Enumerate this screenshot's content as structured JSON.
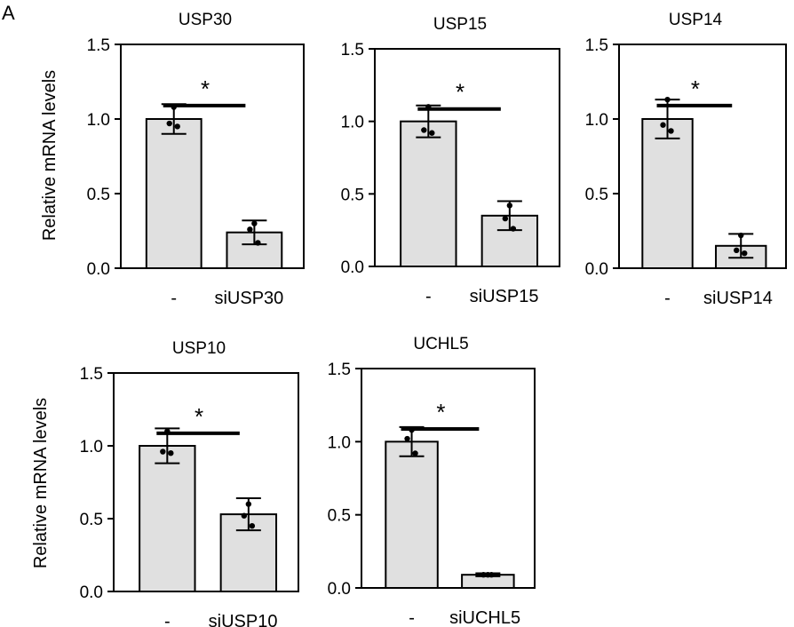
{
  "panel_label": "A",
  "y_axis_label": "Relative mRNA levels",
  "colors": {
    "bar_fill": "#e0e0e0",
    "stroke": "#000000"
  },
  "chart_data": [
    {
      "type": "bar",
      "title": "USP30",
      "categories": [
        "-",
        "siUSP30"
      ],
      "values": [
        1.0,
        0.24
      ],
      "error_high": [
        1.1,
        0.32
      ],
      "error_low": [
        0.9,
        0.16
      ],
      "points": [
        [
          1.08,
          0.97,
          0.95
        ],
        [
          0.3,
          0.26,
          0.17
        ]
      ],
      "ylim": [
        0,
        1.5
      ],
      "yticks": [
        "0.0",
        "0.5",
        "1.0",
        "1.5"
      ],
      "ytick_values": [
        0,
        0.5,
        1.0,
        1.5
      ],
      "significance": "*",
      "ylabel": "Relative mRNA levels"
    },
    {
      "type": "bar",
      "title": "USP15",
      "categories": [
        "-",
        "siUSP15"
      ],
      "values": [
        1.0,
        0.35
      ],
      "error_high": [
        1.11,
        0.45
      ],
      "error_low": [
        0.89,
        0.25
      ],
      "points": [
        [
          1.1,
          0.94,
          0.92
        ],
        [
          0.42,
          0.33,
          0.26
        ]
      ],
      "ylim": [
        0,
        1.5
      ],
      "yticks": [
        "0.0",
        "0.5",
        "1.0",
        "1.5"
      ],
      "ytick_values": [
        0,
        0.5,
        1.0,
        1.5
      ],
      "significance": "*",
      "ylabel": ""
    },
    {
      "type": "bar",
      "title": "USP14",
      "categories": [
        "-",
        "siUSP14"
      ],
      "values": [
        1.0,
        0.15
      ],
      "error_high": [
        1.13,
        0.23
      ],
      "error_low": [
        0.87,
        0.07
      ],
      "points": [
        [
          1.13,
          0.96,
          0.92
        ],
        [
          0.22,
          0.12,
          0.1
        ]
      ],
      "ylim": [
        0,
        1.5
      ],
      "yticks": [
        "0.0",
        "0.5",
        "1.0",
        "1.5"
      ],
      "ytick_values": [
        0,
        0.5,
        1.0,
        1.5
      ],
      "significance": "*",
      "ylabel": ""
    },
    {
      "type": "bar",
      "title": "USP10",
      "categories": [
        "-",
        "siUSP10"
      ],
      "values": [
        1.0,
        0.53
      ],
      "error_high": [
        1.12,
        0.64
      ],
      "error_low": [
        0.88,
        0.42
      ],
      "points": [
        [
          1.1,
          0.96,
          0.95
        ],
        [
          0.6,
          0.52,
          0.45
        ]
      ],
      "ylim": [
        0,
        1.5
      ],
      "yticks": [
        "0.0",
        "0.5",
        "1.0",
        "1.5"
      ],
      "ytick_values": [
        0,
        0.5,
        1.0,
        1.5
      ],
      "significance": "*",
      "ylabel": "Relative mRNA levels"
    },
    {
      "type": "bar",
      "title": "UCHL5",
      "categories": [
        "-",
        "siUCHL5"
      ],
      "values": [
        1.0,
        0.09
      ],
      "error_high": [
        1.1,
        0.1
      ],
      "error_low": [
        0.9,
        0.08
      ],
      "points": [
        [
          1.08,
          1.02,
          0.92
        ],
        [
          0.09,
          0.09,
          0.09
        ]
      ],
      "ylim": [
        0,
        1.5
      ],
      "yticks": [
        "0.0",
        "0.5",
        "1.0",
        "1.5"
      ],
      "ytick_values": [
        0,
        0.5,
        1.0,
        1.5
      ],
      "significance": "*",
      "ylabel": ""
    }
  ]
}
